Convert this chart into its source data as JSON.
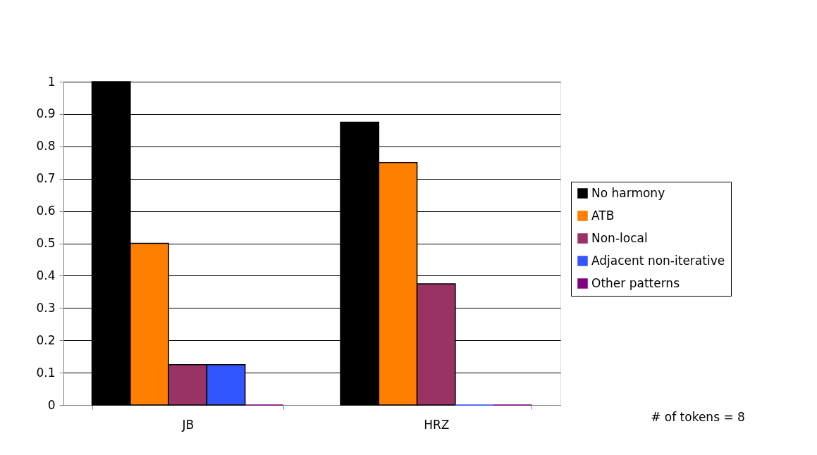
{
  "chart_data": {
    "type": "bar",
    "categories": [
      "JB",
      "HRZ"
    ],
    "series": [
      {
        "name": "No harmony",
        "color": "#000000",
        "values": [
          1,
          0.875
        ]
      },
      {
        "name": "ATB",
        "color": "#ff8000",
        "values": [
          0.5,
          0.75
        ]
      },
      {
        "name": "Non-local",
        "color": "#993366",
        "values": [
          0.125,
          0.375
        ]
      },
      {
        "name": "Adjacent non-iterative",
        "color": "#3355ff",
        "values": [
          0.125,
          0
        ]
      },
      {
        "name": "Other patterns",
        "color": "#800080",
        "values": [
          0,
          0
        ]
      }
    ],
    "ylim": [
      0,
      1
    ],
    "yticks": [
      0,
      0.1,
      0.2,
      0.3,
      0.4,
      0.5,
      0.6,
      0.7,
      0.8,
      0.9,
      1
    ],
    "grid": "y",
    "legend": "right",
    "annotations": [
      "# of tokens = 8"
    ]
  }
}
